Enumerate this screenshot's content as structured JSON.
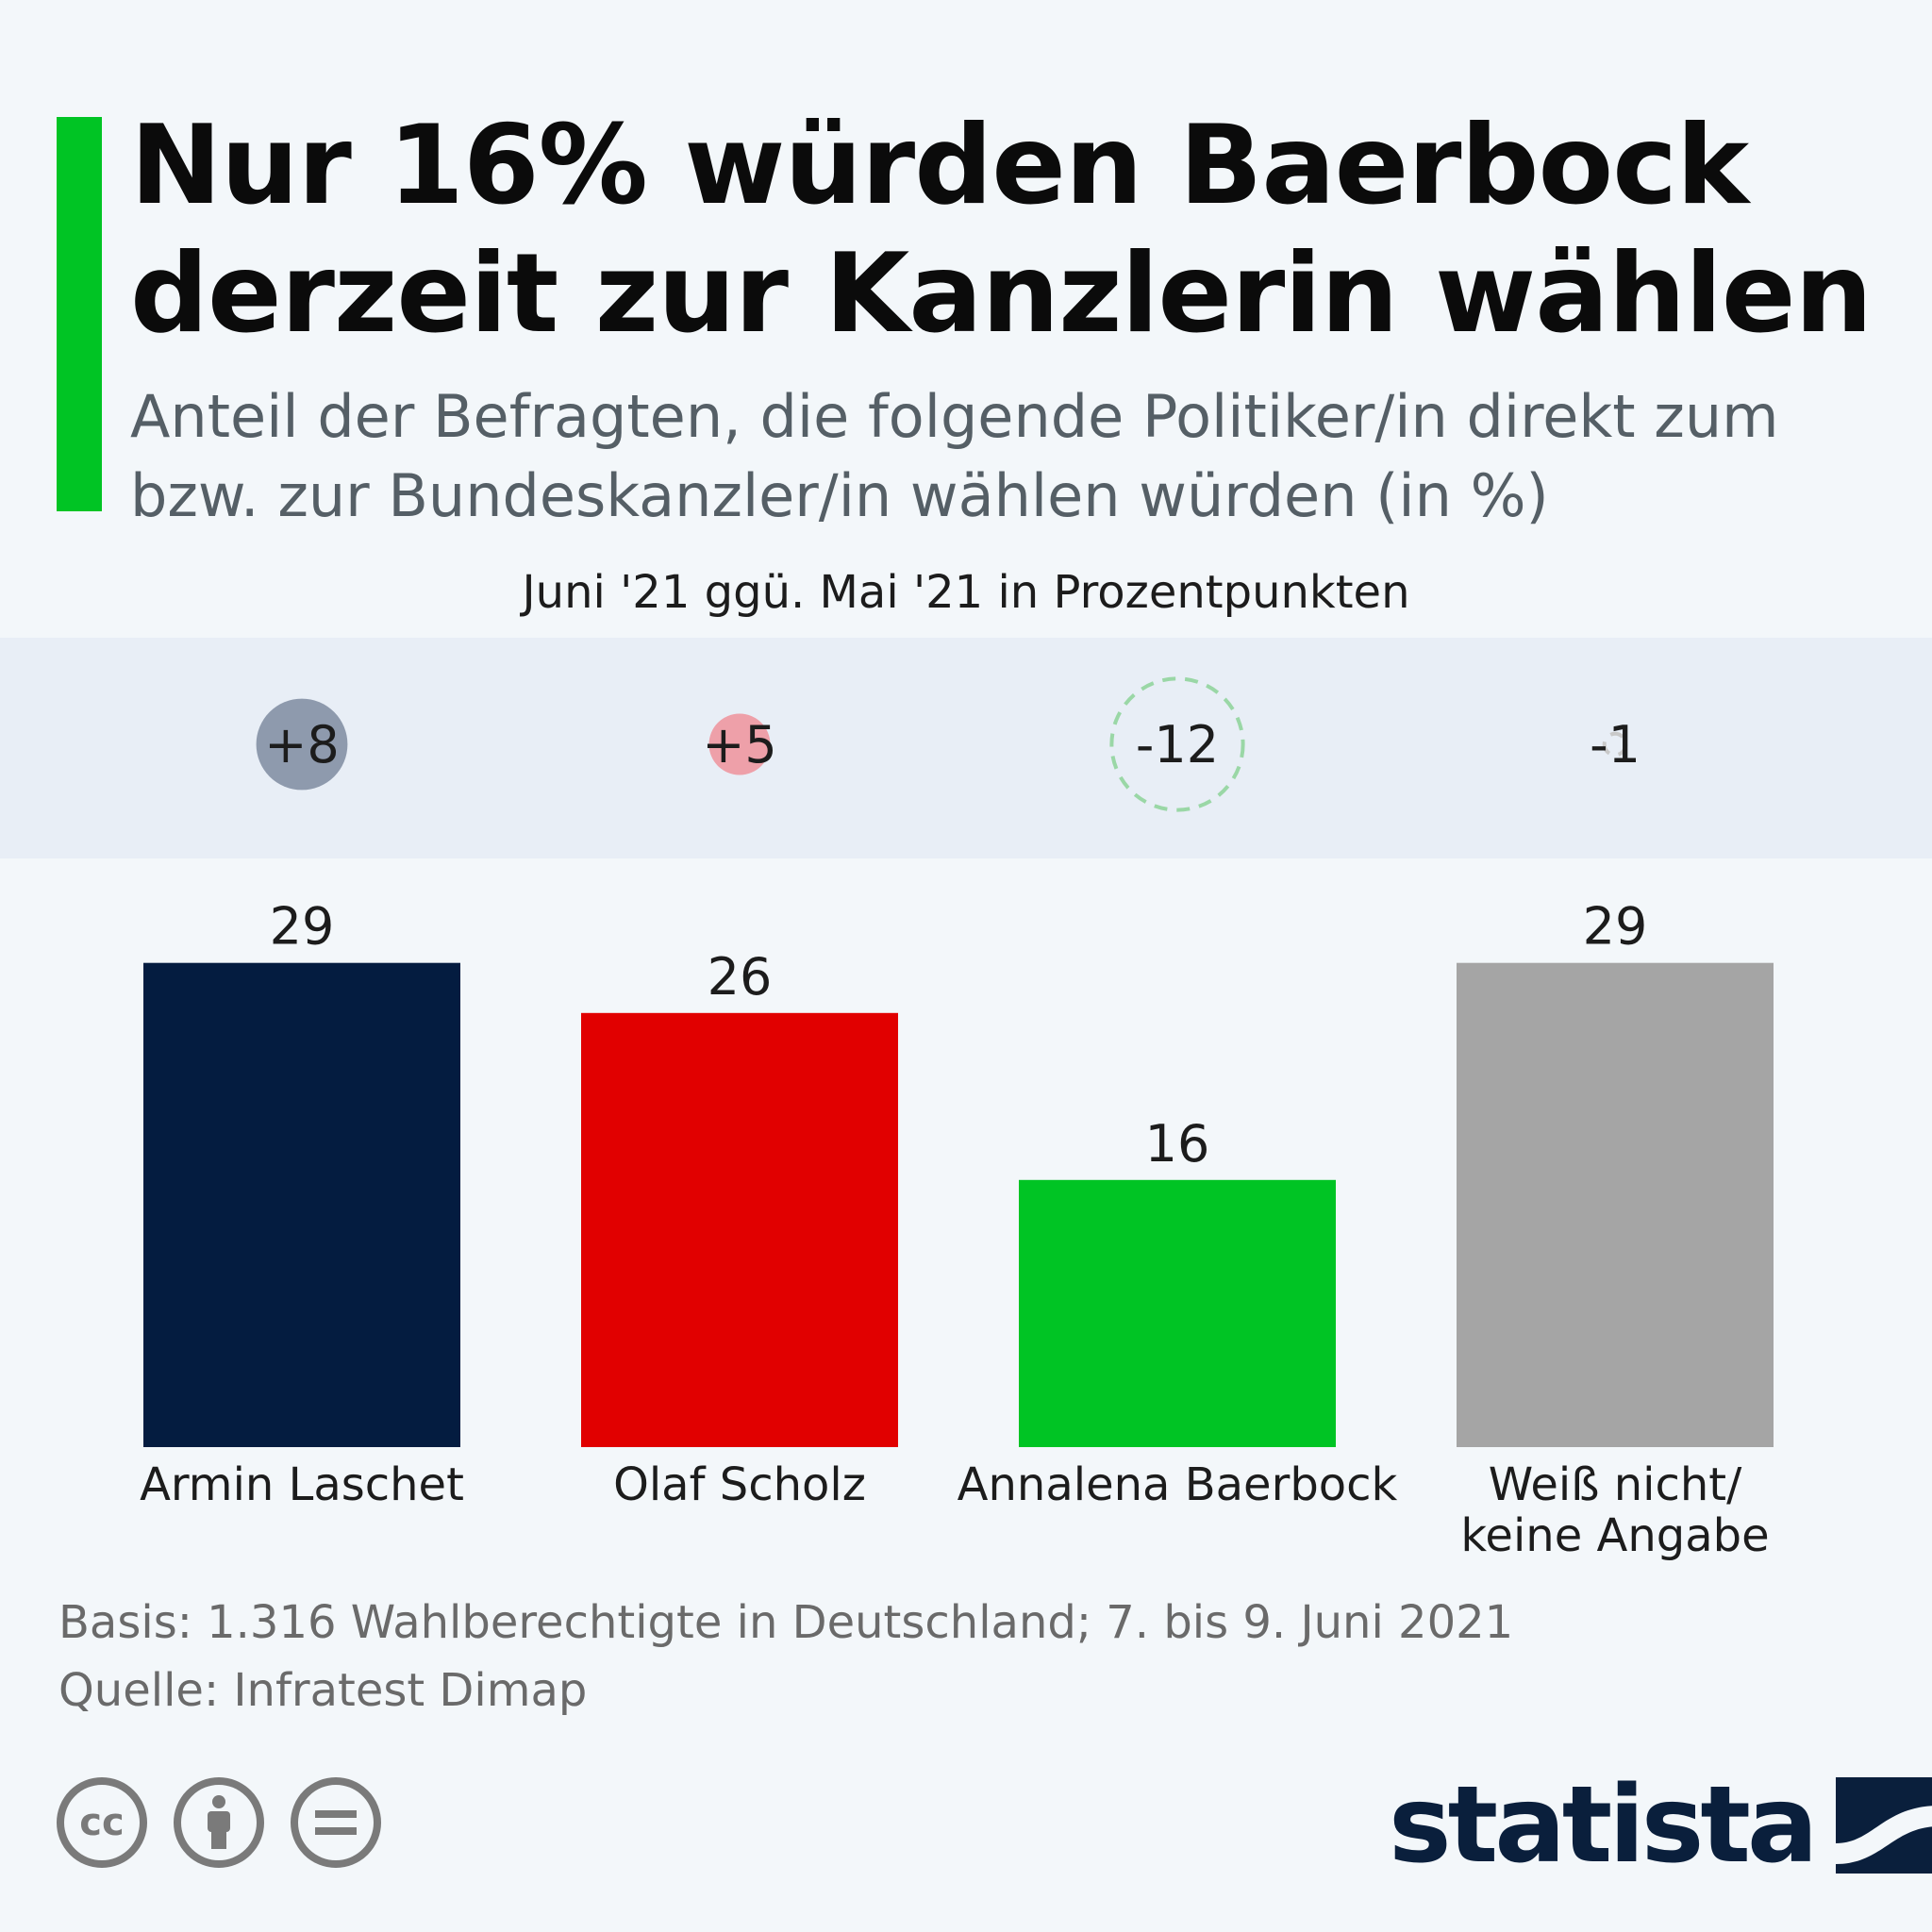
{
  "header": {
    "title": "Nur 16% würden Baerbock derzeit zur Kanzlerin wählen",
    "subtitle": "Anteil der Befragten, die folgende Politiker/in direkt zum bzw. zur Bundeskanzler/in wählen würden (in %)"
  },
  "change_caption": "Juni '21 ggü. Mai '21 in Prozentpunkten",
  "chart_data": {
    "type": "bar",
    "categories": [
      "Armin Laschet",
      "Olaf Scholz",
      "Annalena Baerbock",
      "Weiß nicht/\nkeine Angabe"
    ],
    "values": [
      29,
      26,
      16,
      29
    ],
    "changes": [
      8,
      5,
      -12,
      -1
    ],
    "change_labels": [
      "+8",
      "+5",
      "-12",
      "-1"
    ],
    "colors": [
      "#041c40",
      "#e10000",
      "#00c424",
      "#a5a5a5"
    ],
    "change_circle_colors": [
      "#8e9aad",
      "#eea0a9",
      "#9ad7a6",
      "#c9c9c9"
    ],
    "unit": "%",
    "title": "Nur 16% würden Baerbock derzeit zur Kanzlerin wählen",
    "xlabel": "",
    "ylabel": ""
  },
  "footer": {
    "basis": "Basis: 1.316 Wahlberechtigte in Deutschland; 7. bis 9. Juni 2021",
    "source": "Quelle: Infratest Dimap"
  },
  "license_icons": [
    "cc-icon",
    "by-icon",
    "nd-icon"
  ],
  "brand": {
    "name": "statista",
    "color": "#0a1f3c"
  }
}
